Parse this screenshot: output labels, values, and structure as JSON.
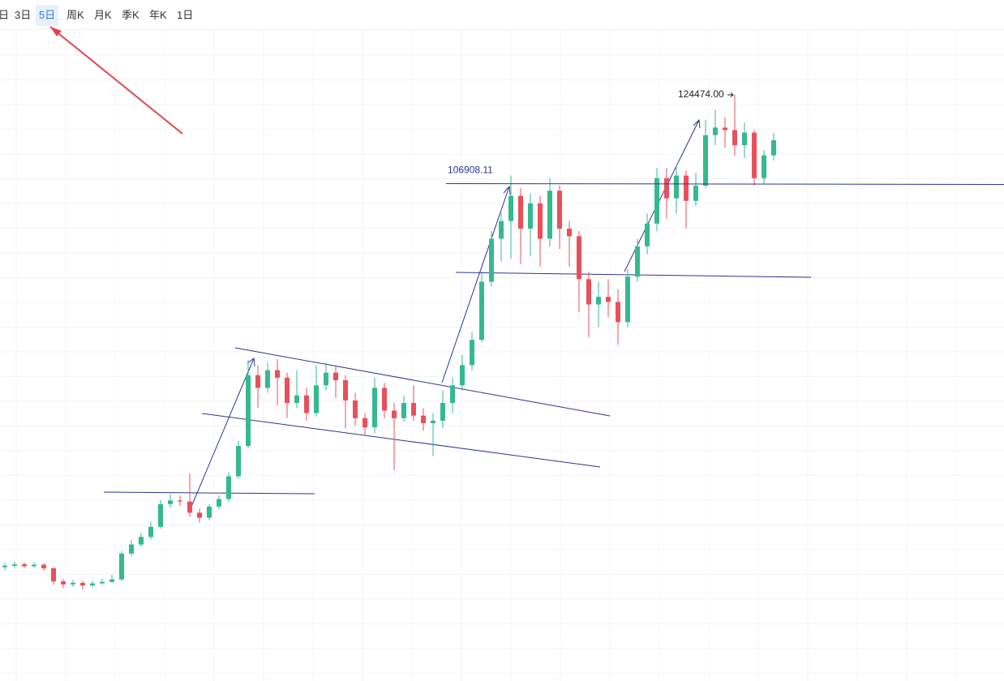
{
  "toolbar": {
    "items": [
      "日",
      "3日",
      "5日",
      "周K",
      "月K",
      "季K",
      "年K",
      "1日"
    ],
    "active": 2
  },
  "chart_data": {
    "type": "candlestick",
    "up_color": "#35b98f",
    "down_color": "#e8505b",
    "line_color": "#2a3593",
    "grid": true,
    "price_labels": [
      {
        "value": 106908.11,
        "label": "106908.11"
      },
      {
        "value": 124474,
        "label": "124474.00"
      }
    ],
    "open": [
      31000,
      31300,
      31600,
      31200,
      31500,
      30800,
      28200,
      27600,
      27900,
      27400,
      27800,
      28100,
      28600,
      33700,
      35500,
      37000,
      39000,
      43500,
      44200,
      44000,
      41800,
      40800,
      43000,
      44500,
      49000,
      55000,
      69000,
      66500,
      70000,
      68500,
      63500,
      65000,
      61500,
      67000,
      69500,
      68000,
      64000,
      60500,
      58700,
      66500,
      62000,
      60500,
      63500,
      61000,
      59500,
      60000,
      63500,
      67000,
      71000,
      76000,
      87500,
      96000,
      99500,
      104500,
      98000,
      103000,
      96000,
      105500,
      98000,
      96500,
      88000,
      83000,
      84500,
      83500,
      79500,
      88500,
      94500,
      99000,
      108000,
      104000,
      108500,
      103500,
      106500,
      116500,
      118000,
      117500,
      114500,
      117000,
      108000,
      112500
    ],
    "high": [
      31900,
      32100,
      31900,
      32000,
      31800,
      31000,
      28700,
      28500,
      28300,
      28300,
      28700,
      29500,
      34200,
      36400,
      37800,
      40000,
      44300,
      45500,
      45200,
      49500,
      42600,
      43500,
      45200,
      49800,
      56000,
      72000,
      71000,
      71500,
      72200,
      69500,
      70000,
      66500,
      71000,
      71500,
      71000,
      69000,
      65500,
      61500,
      68500,
      67500,
      63500,
      65000,
      67000,
      62500,
      61500,
      66000,
      68500,
      73000,
      77500,
      89500,
      97500,
      101000,
      108500,
      106000,
      105000,
      104500,
      108000,
      106500,
      99500,
      97500,
      89500,
      87500,
      88000,
      86000,
      90000,
      96000,
      101000,
      110000,
      110000,
      110500,
      109500,
      109000,
      119500,
      121500,
      120000,
      124474,
      119000,
      117500,
      113500,
      117000
    ],
    "low": [
      30500,
      30900,
      30800,
      30900,
      30300,
      27500,
      26900,
      27100,
      26600,
      27000,
      27500,
      27900,
      28300,
      33200,
      35000,
      36500,
      38600,
      42800,
      43200,
      41000,
      39800,
      40300,
      42500,
      44000,
      48500,
      54500,
      62500,
      65500,
      63000,
      60500,
      62500,
      60000,
      60800,
      66000,
      64500,
      58500,
      59000,
      57000,
      57500,
      60500,
      50200,
      59800,
      60000,
      58000,
      53000,
      58500,
      61500,
      66000,
      70000,
      75500,
      86500,
      91500,
      92000,
      91000,
      92500,
      90500,
      94500,
      94000,
      90500,
      81500,
      76500,
      78500,
      80500,
      75000,
      78500,
      87500,
      93000,
      97500,
      100000,
      101000,
      98000,
      102500,
      106000,
      114500,
      114000,
      112500,
      112000,
      106500,
      106800,
      111500
    ],
    "close": [
      31300,
      31600,
      31200,
      31500,
      30800,
      28200,
      27600,
      27900,
      27400,
      27800,
      28100,
      28600,
      33700,
      35500,
      37000,
      39000,
      43500,
      44200,
      44000,
      41800,
      40800,
      43000,
      44500,
      49000,
      55000,
      69000,
      66500,
      70000,
      68500,
      63500,
      65000,
      61500,
      67000,
      69500,
      68000,
      64000,
      60500,
      58700,
      66500,
      62000,
      60500,
      63500,
      61000,
      59500,
      60000,
      63500,
      67000,
      71000,
      76000,
      87500,
      96000,
      99500,
      104500,
      98000,
      103000,
      96000,
      105500,
      98000,
      96500,
      88000,
      83000,
      84500,
      83500,
      79500,
      88500,
      94500,
      99000,
      108000,
      104000,
      108500,
      103500,
      106500,
      116500,
      118000,
      117500,
      114500,
      117000,
      108000,
      112500,
      115500
    ]
  }
}
